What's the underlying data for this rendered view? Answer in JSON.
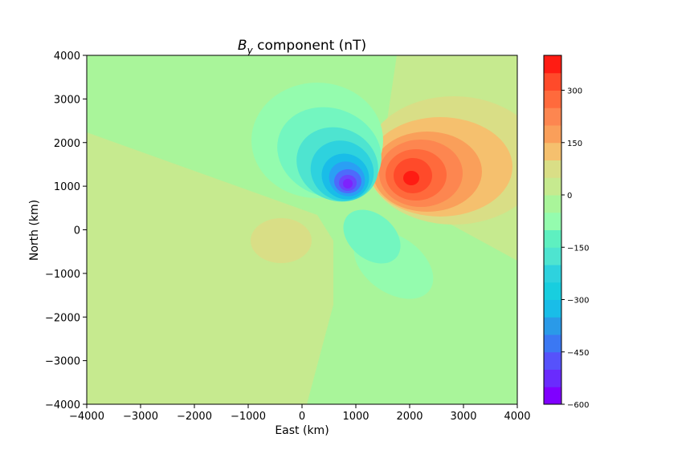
{
  "chart_data": {
    "type": "contour",
    "title_main": "B",
    "title_sub": "y",
    "title_rest": " component (nT)",
    "xlabel": "East (km)",
    "ylabel": "North (km)",
    "xlim": [
      -4000,
      4000
    ],
    "ylim": [
      -4000,
      4000
    ],
    "xticks": [
      "−4000",
      "−3000",
      "−2000",
      "−1000",
      "0",
      "1000",
      "2000",
      "3000",
      "4000"
    ],
    "yticks": [
      "4000",
      "3000",
      "2000",
      "1000",
      "0",
      "−1000",
      "−2000",
      "−3000",
      "−4000"
    ],
    "grid": false,
    "colorbar": {
      "min": -600,
      "max": 400,
      "step": 50,
      "ticks": [
        "300",
        "150",
        "0",
        "−150",
        "−300",
        "−450",
        "−600"
      ],
      "tick_values": [
        300,
        150,
        0,
        -150,
        -300,
        -450,
        -600
      ],
      "colormap": "rainbow"
    },
    "features": [
      {
        "kind": "minimum",
        "x": 850,
        "y": 1050,
        "value": -600
      },
      {
        "kind": "maximum",
        "x": 2050,
        "y": 1150,
        "value": 400
      },
      {
        "kind": "weak-positive",
        "x": -450,
        "y": -250,
        "value": 25
      }
    ]
  }
}
